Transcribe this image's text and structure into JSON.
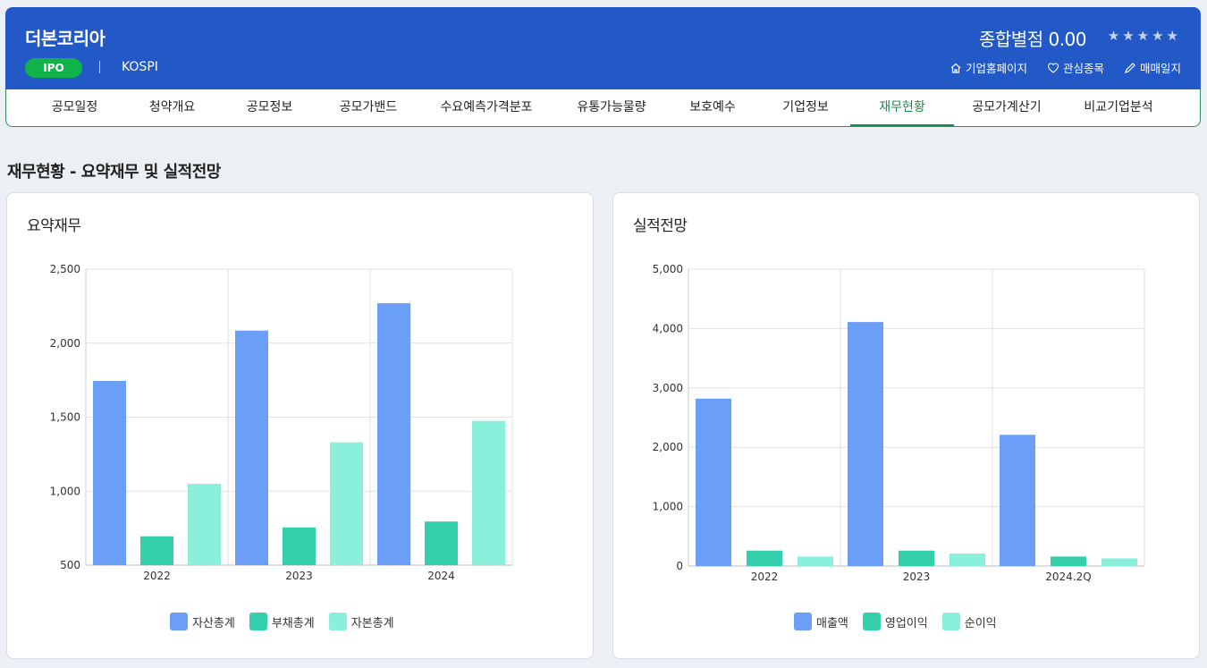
{
  "header": {
    "company_name": "더본코리아",
    "badge": "IPO",
    "market": "KOSPI",
    "score_label": "종합별점",
    "score_value": "0.00",
    "stars": "★★★★★",
    "links": [
      {
        "label": "기업홈페이지",
        "icon": "home-icon"
      },
      {
        "label": "관심종목",
        "icon": "heart-icon"
      },
      {
        "label": "매매일지",
        "icon": "pencil-icon"
      }
    ]
  },
  "tabs": [
    {
      "label": "공모일정"
    },
    {
      "label": "청약개요"
    },
    {
      "label": "공모정보"
    },
    {
      "label": "공모가밴드"
    },
    {
      "label": "수요예측가격분포"
    },
    {
      "label": "유통가능물량"
    },
    {
      "label": "보호예수"
    },
    {
      "label": "기업정보"
    },
    {
      "label": "재무현황",
      "active": true
    },
    {
      "label": "공모가계산기"
    },
    {
      "label": "비교기업분석"
    }
  ],
  "section_title": "재무현황 - 요약재무 및 실적전망",
  "colors": {
    "series1": "#6a9ef7",
    "series2": "#36cfab",
    "series3": "#8af0dc",
    "header_bg": "#2358c7",
    "accent_green": "#1e8a4c"
  },
  "chart_data": [
    {
      "type": "bar",
      "title": "요약재무",
      "categories": [
        "2022",
        "2023",
        "2024"
      ],
      "ylim": [
        500,
        2500
      ],
      "yticks": [
        "500",
        "1,000",
        "1,500",
        "2,000",
        "2,500"
      ],
      "grid": true,
      "legend": "bottom",
      "series": [
        {
          "name": "자산총계",
          "values": [
            1745,
            2085,
            2270
          ]
        },
        {
          "name": "부채총계",
          "values": [
            695,
            755,
            795
          ]
        },
        {
          "name": "자본총계",
          "values": [
            1050,
            1330,
            1475
          ]
        }
      ]
    },
    {
      "type": "bar",
      "title": "실적전망",
      "categories": [
        "2022",
        "2023",
        "2024.2Q"
      ],
      "ylim": [
        0,
        5000
      ],
      "yticks": [
        "0",
        "1,000",
        "2,000",
        "3,000",
        "4,000",
        "5,000"
      ],
      "grid": true,
      "legend": "bottom",
      "series": [
        {
          "name": "매출액",
          "values": [
            2820,
            4110,
            2210
          ]
        },
        {
          "name": "영업이익",
          "values": [
            260,
            260,
            160
          ]
        },
        {
          "name": "순이익",
          "values": [
            160,
            210,
            130
          ]
        }
      ]
    }
  ]
}
